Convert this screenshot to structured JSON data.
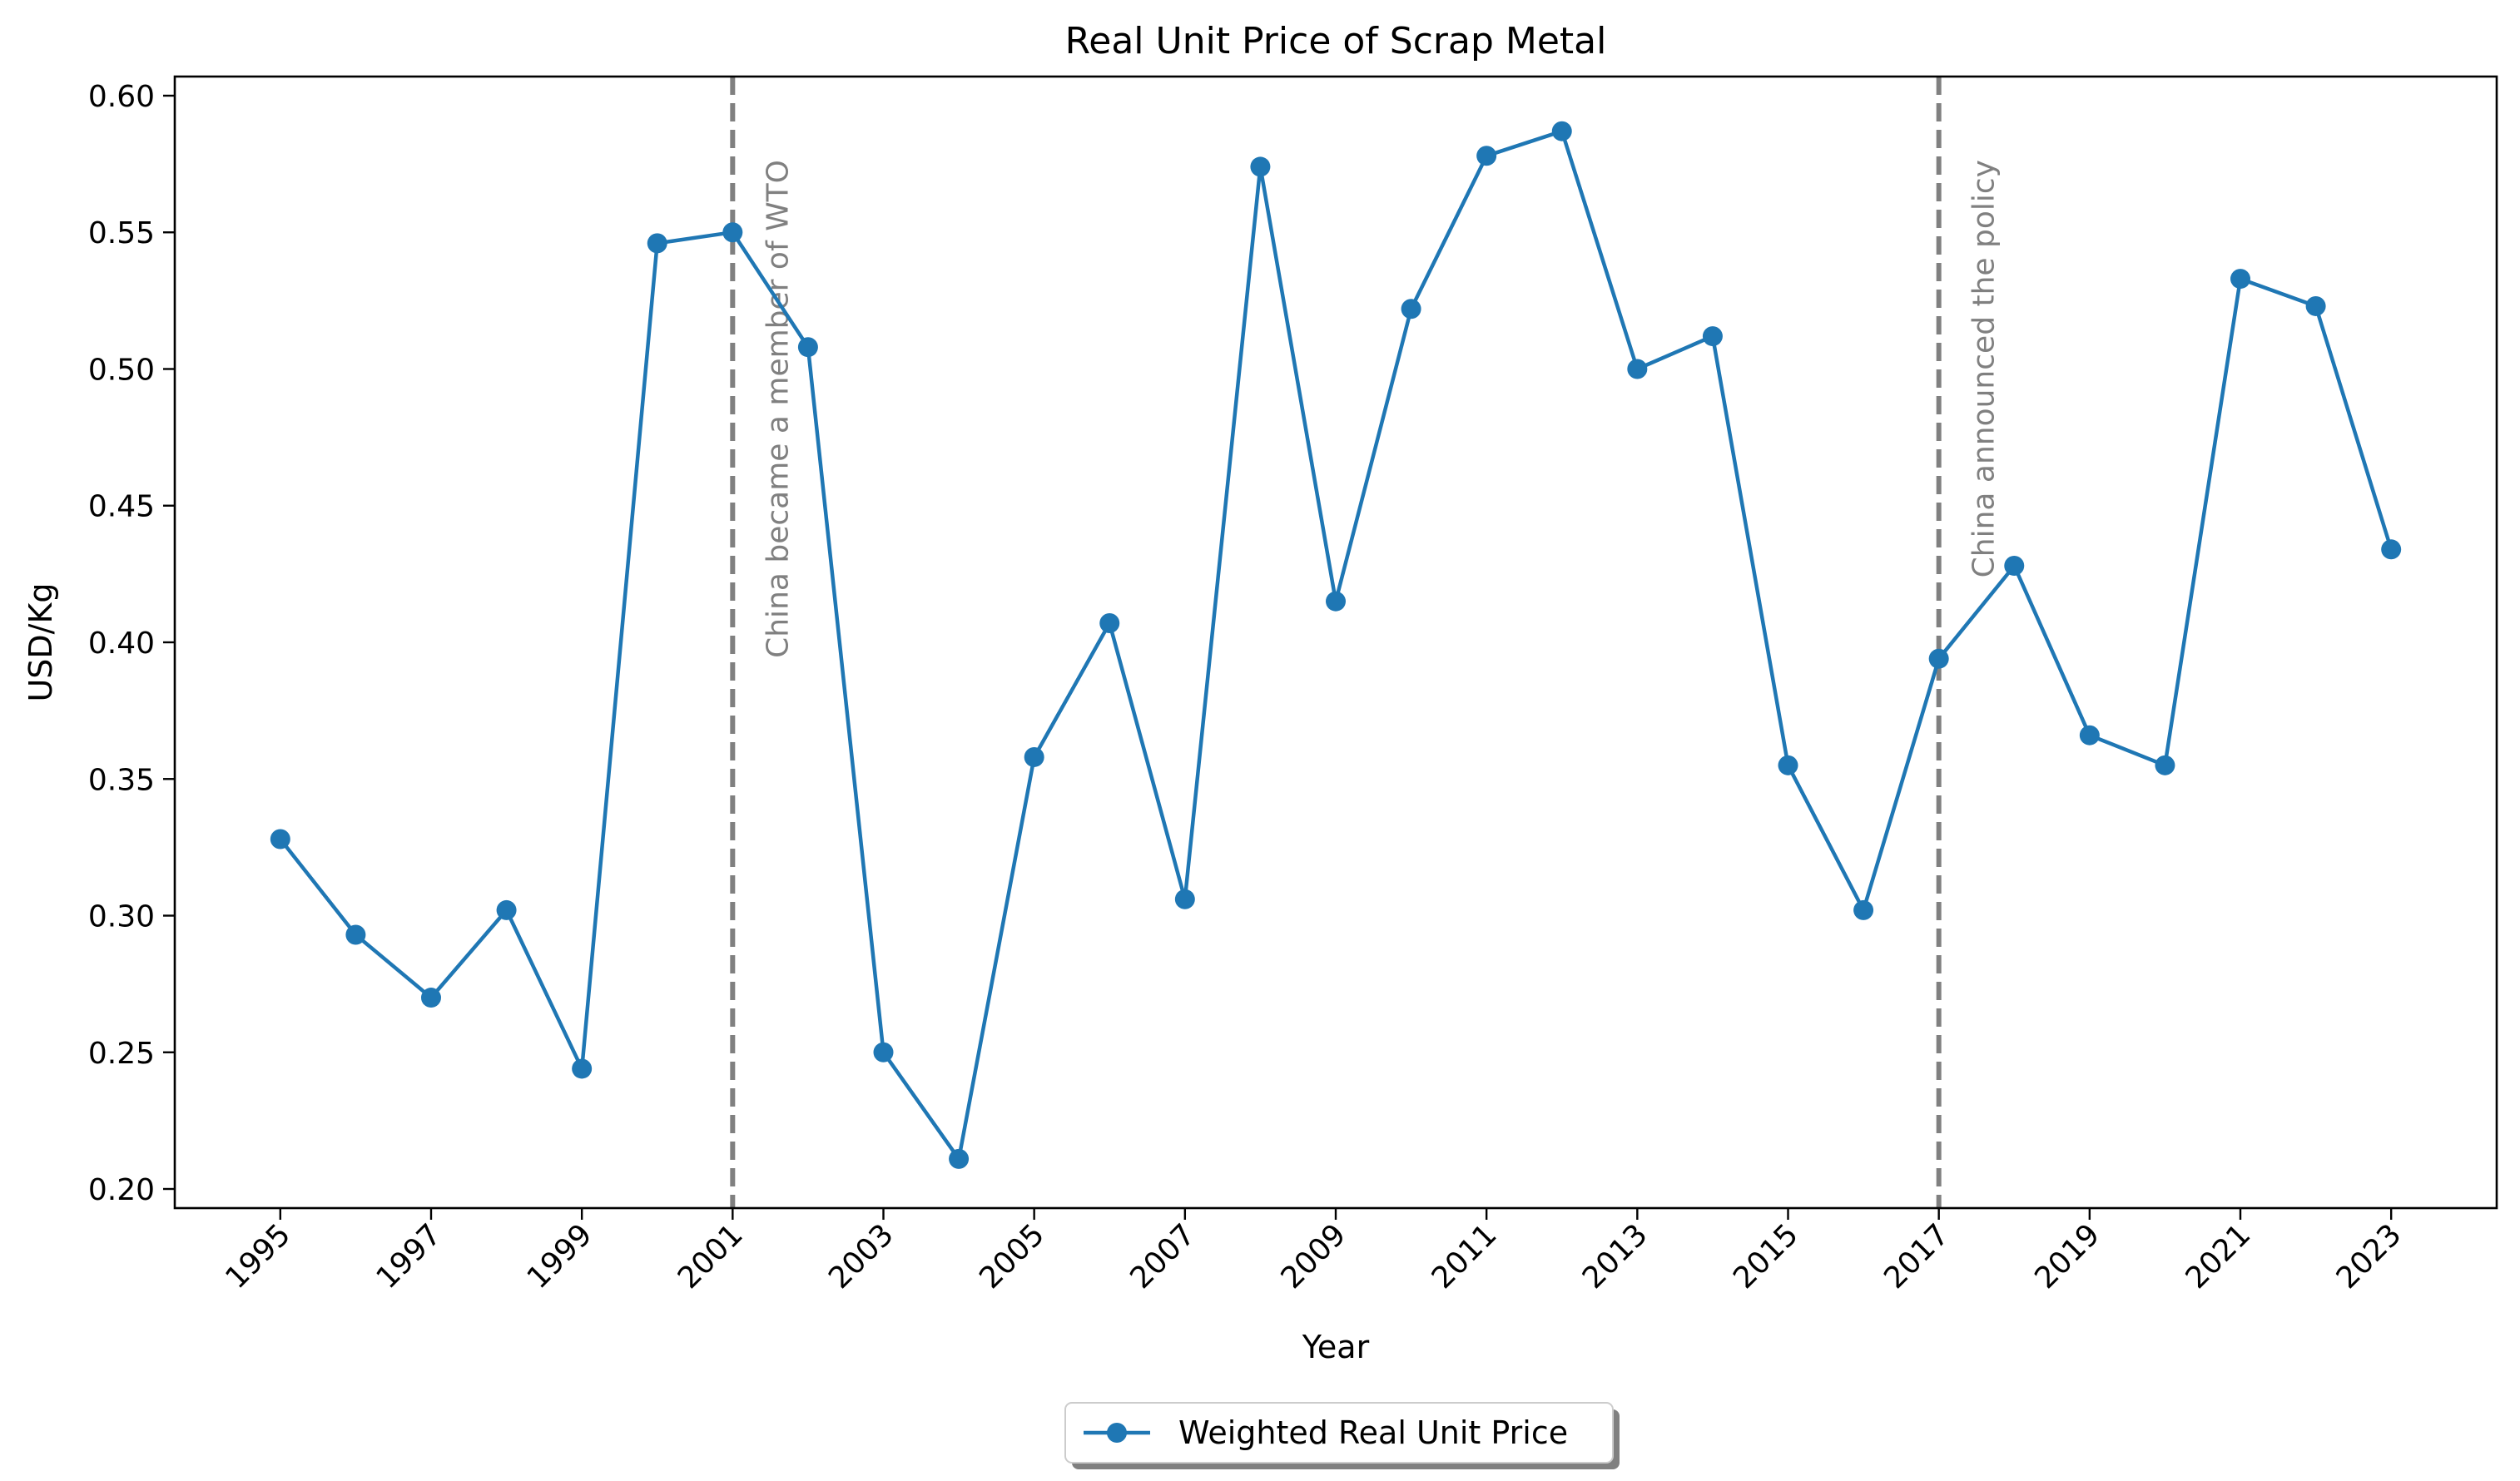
{
  "chart_data": {
    "type": "line",
    "title": "Real Unit Price of Scrap Metal",
    "xlabel": "Year",
    "ylabel": "USD/Kg",
    "xlim": [
      1993.6,
      2024.4
    ],
    "ylim": [
      0.193,
      0.607
    ],
    "x_ticks": [
      "1995",
      "1997",
      "1999",
      "2001",
      "2003",
      "2005",
      "2007",
      "2009",
      "2011",
      "2013",
      "2015",
      "2017",
      "2019",
      "2021",
      "2023"
    ],
    "y_ticks": [
      "0.20",
      "0.25",
      "0.30",
      "0.35",
      "0.40",
      "0.45",
      "0.50",
      "0.55",
      "0.60"
    ],
    "grid": false,
    "legend_position": "bottom-center",
    "series": [
      {
        "name": "Weighted Real Unit Price",
        "color": "#1f77b4",
        "marker": "circle",
        "x": [
          1995,
          1996,
          1997,
          1998,
          1999,
          2000,
          2001,
          2002,
          2003,
          2004,
          2005,
          2006,
          2007,
          2008,
          2009,
          2010,
          2011,
          2012,
          2013,
          2014,
          2015,
          2016,
          2017,
          2018,
          2019,
          2020,
          2021,
          2022,
          2023
        ],
        "values": [
          0.328,
          0.293,
          0.27,
          0.302,
          0.244,
          0.546,
          0.55,
          0.508,
          0.25,
          0.211,
          0.358,
          0.407,
          0.306,
          0.574,
          0.415,
          0.522,
          0.578,
          0.587,
          0.5,
          0.512,
          0.355,
          0.302,
          0.394,
          0.428,
          0.366,
          0.355,
          0.533,
          0.523,
          0.434
        ]
      }
    ],
    "annotations": [
      {
        "x": 2001,
        "text": "China became a member of WTO",
        "line_color": "#808080",
        "line_style": "dashed"
      },
      {
        "x": 2017,
        "text": "China announced the policy",
        "line_color": "#808080",
        "line_style": "dashed"
      }
    ]
  }
}
